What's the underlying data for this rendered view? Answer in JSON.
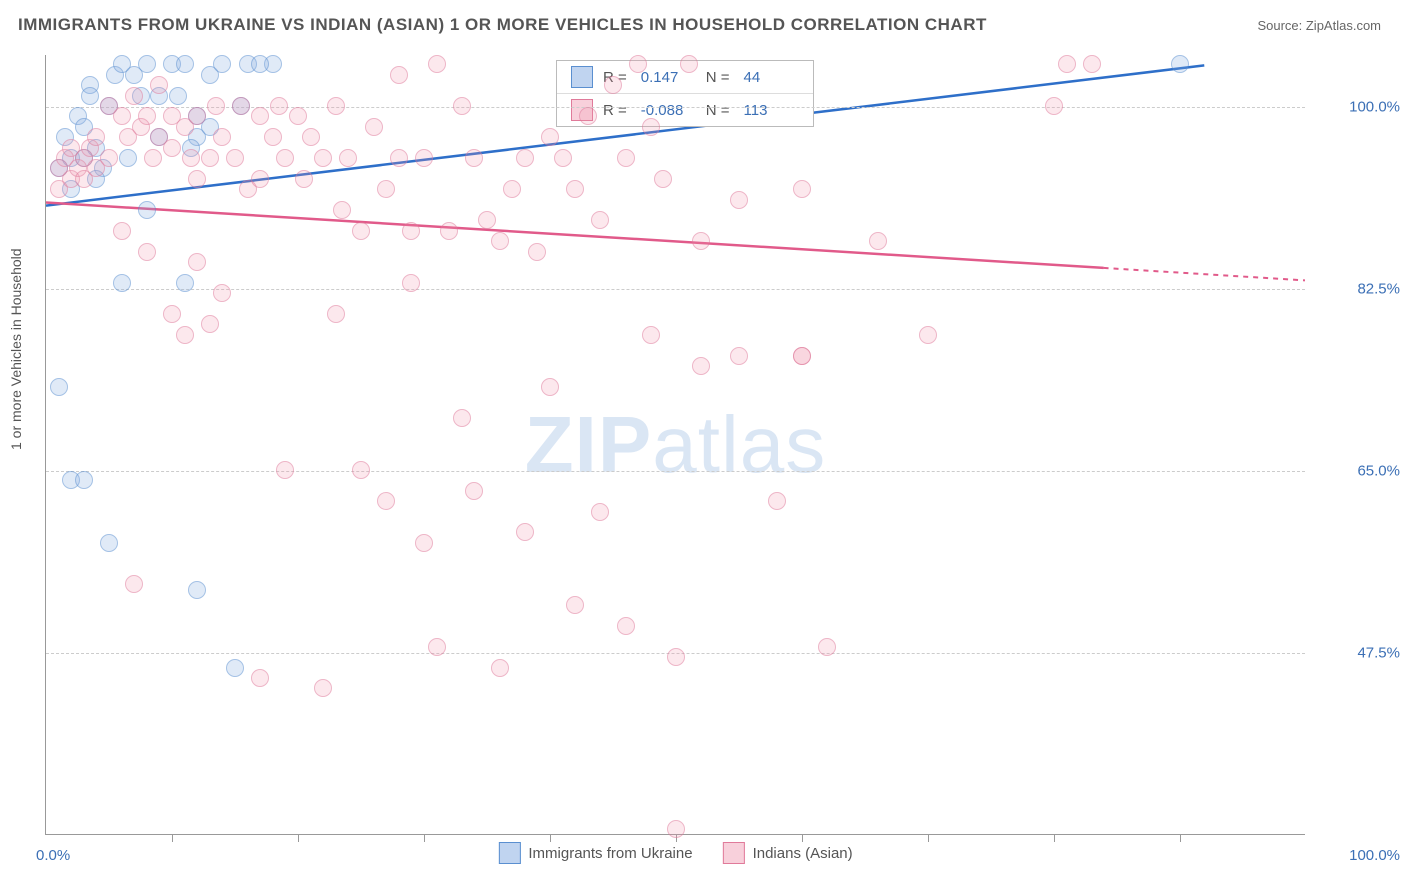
{
  "title": "IMMIGRANTS FROM UKRAINE VS INDIAN (ASIAN) 1 OR MORE VEHICLES IN HOUSEHOLD CORRELATION CHART",
  "source": "Source: ZipAtlas.com",
  "ylabel": "1 or more Vehicles in Household",
  "watermark_bold": "ZIP",
  "watermark_light": "atlas",
  "chart": {
    "type": "scatter",
    "xlim": [
      0,
      100
    ],
    "ylim": [
      30,
      105
    ],
    "x_label_min": "0.0%",
    "x_label_max": "100.0%",
    "xtick_positions": [
      10,
      20,
      30,
      40,
      50,
      60,
      70,
      80,
      90
    ],
    "ytick_values": [
      47.5,
      65.0,
      82.5,
      100.0
    ],
    "ytick_labels": [
      "47.5%",
      "65.0%",
      "82.5%",
      "100.0%"
    ],
    "grid_color": "#cccccc",
    "background_color": "#ffffff",
    "axis_color": "#999999",
    "tick_label_color": "#3b6fb5",
    "series": [
      {
        "name": "Immigrants from Ukraine",
        "color_fill": "rgba(130,170,225,0.45)",
        "color_stroke": "#5a8fd0",
        "line_color": "#2e6fc9",
        "marker_size": 18,
        "R": 0.147,
        "N": 44,
        "trend": {
          "x1": 0,
          "y1": 90.5,
          "x2": 92,
          "y2": 104,
          "dash_after_x": 92
        },
        "points": [
          [
            1,
            73
          ],
          [
            1,
            94
          ],
          [
            1.5,
            97
          ],
          [
            2,
            95
          ],
          [
            2,
            92
          ],
          [
            2.5,
            99
          ],
          [
            3,
            98
          ],
          [
            3,
            95
          ],
          [
            3.5,
            102
          ],
          [
            4,
            96
          ],
          [
            4.5,
            94
          ],
          [
            5,
            100
          ],
          [
            5.5,
            103
          ],
          [
            6,
            104
          ],
          [
            7,
            103
          ],
          [
            7.5,
            101
          ],
          [
            8,
            104
          ],
          [
            9,
            97
          ],
          [
            10,
            104
          ],
          [
            10.5,
            101
          ],
          [
            11,
            104
          ],
          [
            12,
            99
          ],
          [
            13,
            103
          ],
          [
            14,
            104
          ],
          [
            6,
            83
          ],
          [
            12,
            97
          ],
          [
            16,
            104
          ],
          [
            18,
            104
          ],
          [
            8,
            90
          ],
          [
            2,
            64
          ],
          [
            3,
            64
          ],
          [
            5,
            58
          ],
          [
            11,
            83
          ],
          [
            12,
            53.5
          ],
          [
            15,
            46
          ],
          [
            17,
            104
          ],
          [
            9,
            101
          ],
          [
            4,
            93
          ],
          [
            3.5,
            101
          ],
          [
            6.5,
            95
          ],
          [
            13,
            98
          ],
          [
            15.5,
            100
          ],
          [
            11.5,
            96
          ],
          [
            90,
            104
          ]
        ]
      },
      {
        "name": "Indians (Asian)",
        "color_fill": "rgba(240,150,175,0.40)",
        "color_stroke": "#e07a9a",
        "line_color": "#e15a8a",
        "marker_size": 18,
        "R": -0.088,
        "N": 113,
        "trend": {
          "x1": 0,
          "y1": 90.8,
          "x2": 84,
          "y2": 84.5,
          "dash_after_x": 84,
          "dash_to_x": 100,
          "dash_to_y": 83.3
        },
        "points": [
          [
            1,
            94
          ],
          [
            1,
            92
          ],
          [
            1.5,
            95
          ],
          [
            2,
            93
          ],
          [
            2,
            96
          ],
          [
            2.5,
            94
          ],
          [
            3,
            95
          ],
          [
            3,
            93
          ],
          [
            3.5,
            96
          ],
          [
            4,
            94
          ],
          [
            4,
            97
          ],
          [
            5,
            100
          ],
          [
            5,
            95
          ],
          [
            6,
            99
          ],
          [
            6.5,
            97
          ],
          [
            7,
            101
          ],
          [
            7.5,
            98
          ],
          [
            8,
            99
          ],
          [
            8.5,
            95
          ],
          [
            9,
            97
          ],
          [
            9,
            102
          ],
          [
            10,
            99
          ],
          [
            10,
            96
          ],
          [
            11,
            98
          ],
          [
            11.5,
            95
          ],
          [
            12,
            99
          ],
          [
            12,
            93
          ],
          [
            13,
            95
          ],
          [
            13.5,
            100
          ],
          [
            14,
            97
          ],
          [
            15,
            95
          ],
          [
            15.5,
            100
          ],
          [
            16,
            92
          ],
          [
            17,
            99
          ],
          [
            17,
            93
          ],
          [
            18,
            97
          ],
          [
            18.5,
            100
          ],
          [
            19,
            95
          ],
          [
            20,
            99
          ],
          [
            20.5,
            93
          ],
          [
            21,
            97
          ],
          [
            22,
            95
          ],
          [
            23,
            100
          ],
          [
            23.5,
            90
          ],
          [
            24,
            95
          ],
          [
            25,
            88
          ],
          [
            26,
            98
          ],
          [
            27,
            92
          ],
          [
            28,
            95
          ],
          [
            28,
            103
          ],
          [
            29,
            88
          ],
          [
            30,
            95
          ],
          [
            31,
            104
          ],
          [
            32,
            88
          ],
          [
            33,
            100
          ],
          [
            34,
            95
          ],
          [
            35,
            89
          ],
          [
            36,
            87
          ],
          [
            37,
            92
          ],
          [
            38,
            95
          ],
          [
            39,
            86
          ],
          [
            40,
            97
          ],
          [
            41,
            95
          ],
          [
            42,
            92
          ],
          [
            43,
            99
          ],
          [
            44,
            89
          ],
          [
            45,
            102
          ],
          [
            46,
            95
          ],
          [
            47,
            104
          ],
          [
            48,
            98
          ],
          [
            49,
            93
          ],
          [
            50,
            30.5
          ],
          [
            51,
            104
          ],
          [
            52,
            87
          ],
          [
            55,
            91
          ],
          [
            60,
            92
          ],
          [
            60,
            76
          ],
          [
            58,
            62
          ],
          [
            81,
            104
          ],
          [
            83,
            104
          ],
          [
            6,
            88
          ],
          [
            8,
            86
          ],
          [
            10,
            80
          ],
          [
            11,
            78
          ],
          [
            12,
            85
          ],
          [
            13,
            79
          ],
          [
            14,
            82
          ],
          [
            7,
            54
          ],
          [
            17,
            45
          ],
          [
            19,
            65
          ],
          [
            22,
            44
          ],
          [
            23,
            80
          ],
          [
            25,
            65
          ],
          [
            27,
            62
          ],
          [
            29,
            83
          ],
          [
            30,
            58
          ],
          [
            31,
            48
          ],
          [
            33,
            70
          ],
          [
            34,
            63
          ],
          [
            36,
            46
          ],
          [
            38,
            59
          ],
          [
            40,
            73
          ],
          [
            42,
            52
          ],
          [
            44,
            61
          ],
          [
            46,
            50
          ],
          [
            48,
            78
          ],
          [
            50,
            47
          ],
          [
            52,
            75
          ],
          [
            55,
            76
          ],
          [
            60,
            76
          ],
          [
            62,
            48
          ],
          [
            66,
            87
          ],
          [
            70,
            78
          ],
          [
            80,
            100
          ]
        ]
      }
    ],
    "stat_labels": {
      "R": "R =",
      "N": "N ="
    },
    "legend_labels": [
      "Immigrants from Ukraine",
      "Indians (Asian)"
    ]
  }
}
